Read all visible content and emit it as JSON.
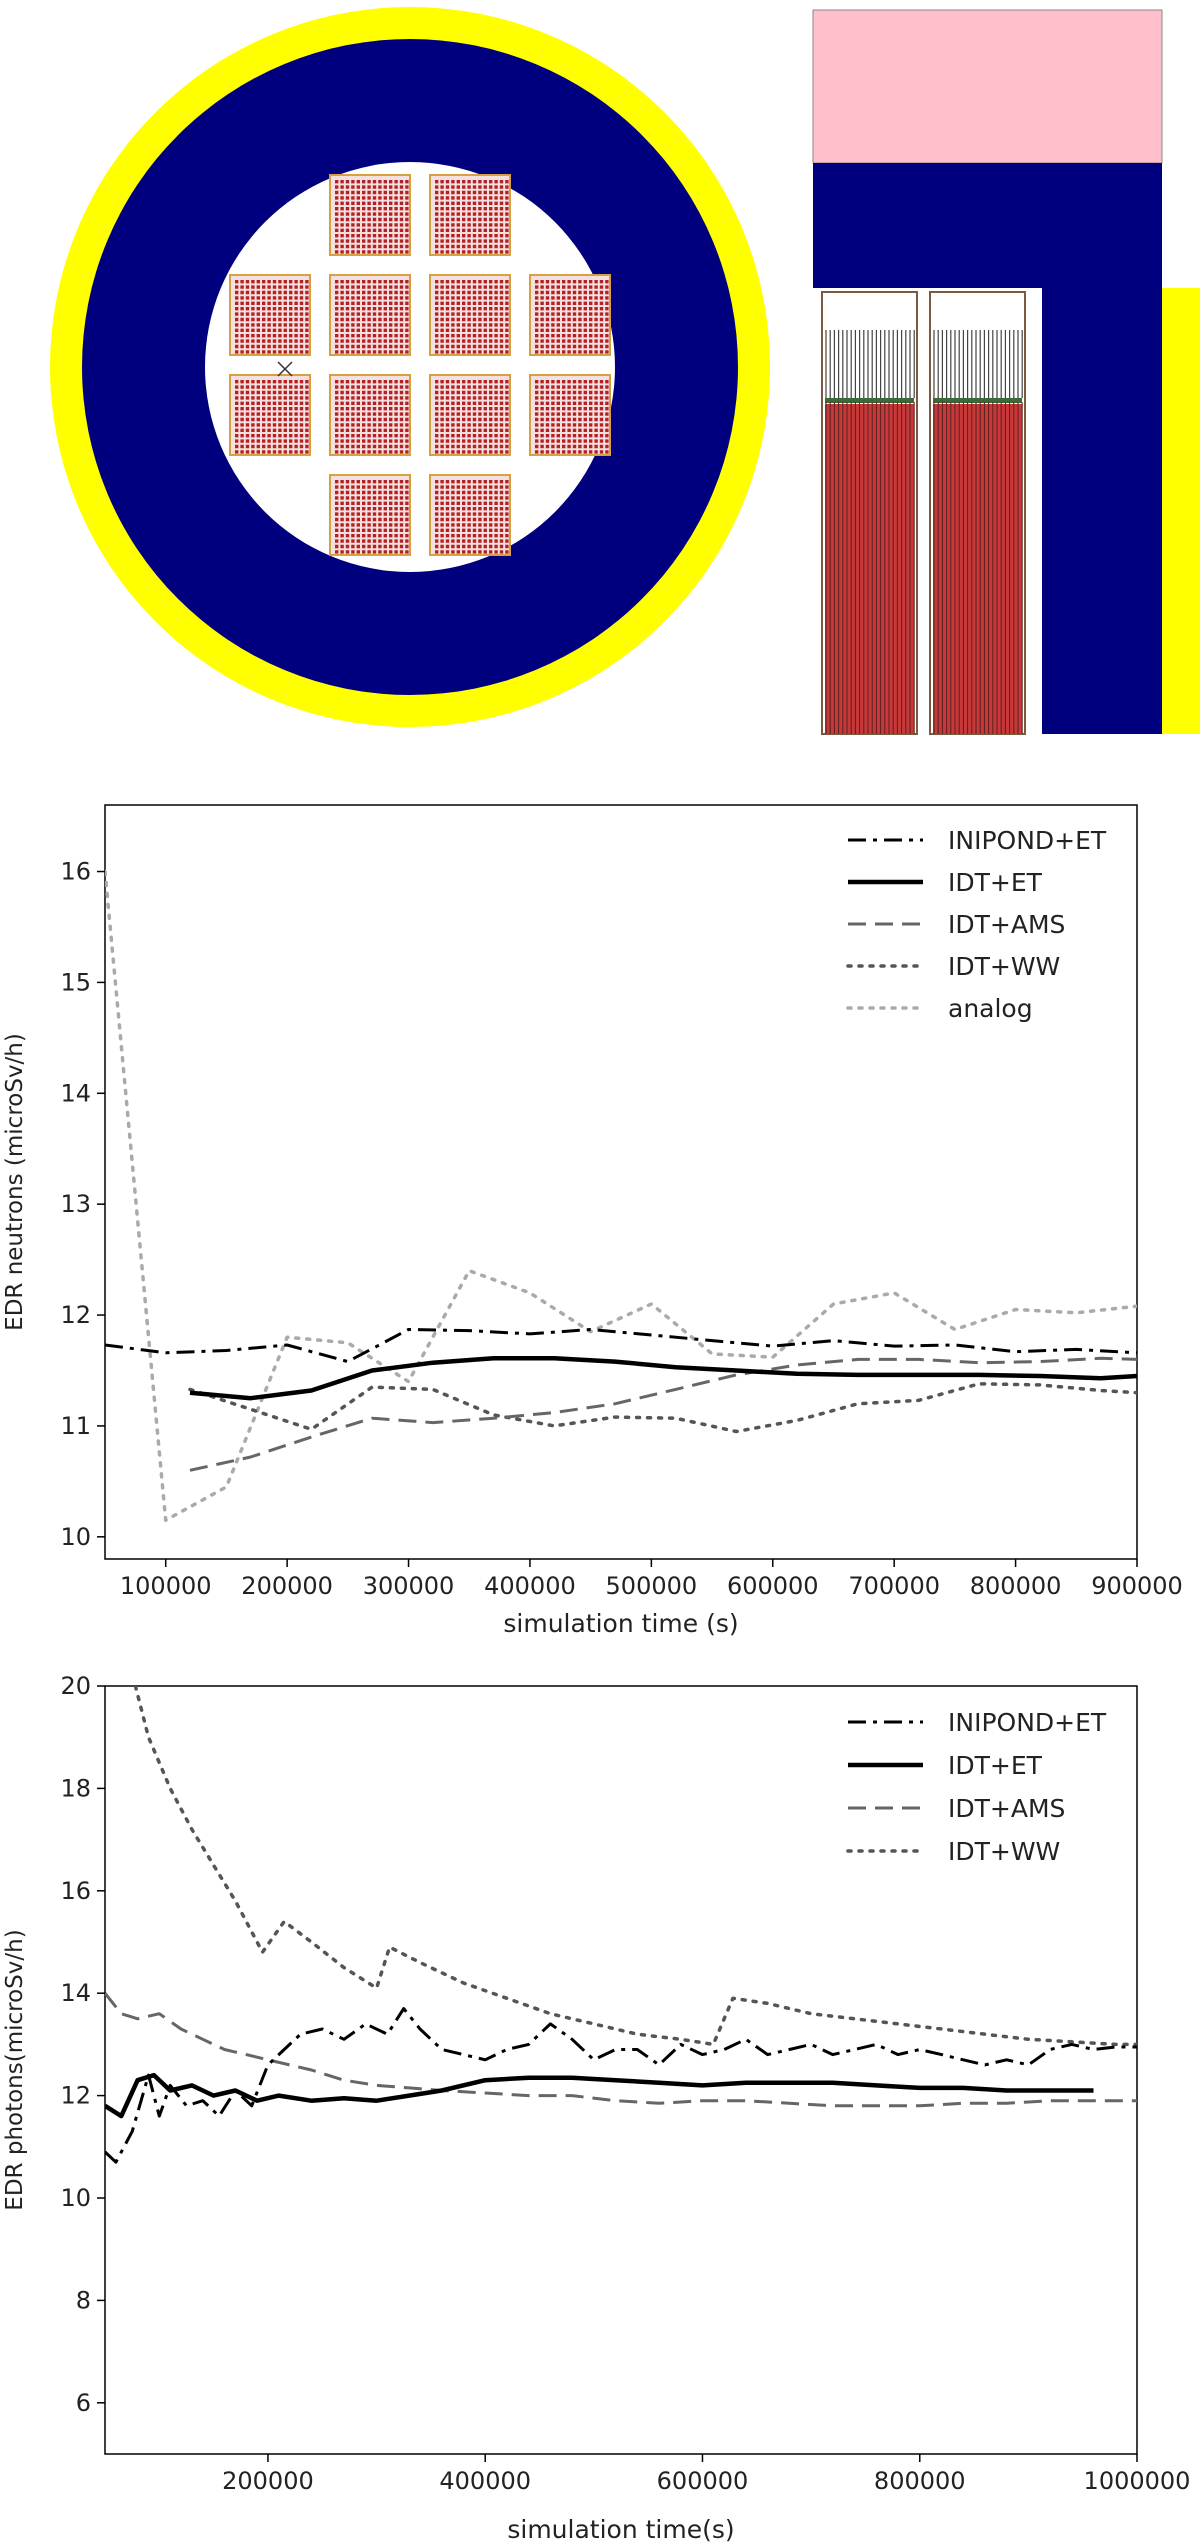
{
  "colors": {
    "yellow": "#ffff00",
    "navy": "#00007f",
    "pink": "#ffc0cb",
    "fuel_red": "#b22222",
    "assembly_outline": "#d8a040"
  },
  "geometry_views": {
    "cross_section": {
      "assemblies": 12
    },
    "side_view": {
      "casks": 2
    }
  },
  "chart_data": [
    {
      "type": "line",
      "xlabel": "simulation time (s)",
      "ylabel": "EDR neutrons (microSv/h)",
      "xlim": [
        50000,
        900000
      ],
      "ylim": [
        9.8,
        16.6
      ],
      "xticks": [
        100000,
        200000,
        300000,
        400000,
        500000,
        600000,
        700000,
        800000,
        900000
      ],
      "yticks": [
        10,
        11,
        12,
        13,
        14,
        15,
        16
      ],
      "legend_position": "top-right",
      "grid": false,
      "series": [
        {
          "name": "INIPOND+ET",
          "style": "dashdot",
          "color": "#000000",
          "width": 3,
          "x": [
            50000,
            100000,
            150000,
            200000,
            250000,
            300000,
            350000,
            400000,
            450000,
            500000,
            550000,
            600000,
            650000,
            700000,
            750000,
            800000,
            850000,
            900000
          ],
          "y": [
            11.73,
            11.66,
            11.68,
            11.73,
            11.58,
            11.87,
            11.86,
            11.83,
            11.87,
            11.82,
            11.77,
            11.72,
            11.77,
            11.72,
            11.73,
            11.67,
            11.69,
            11.66
          ]
        },
        {
          "name": "IDT+ET",
          "style": "solid",
          "color": "#000000",
          "width": 4.5,
          "x": [
            120000,
            170000,
            220000,
            270000,
            320000,
            370000,
            420000,
            470000,
            520000,
            570000,
            620000,
            670000,
            720000,
            770000,
            820000,
            870000,
            900000
          ],
          "y": [
            11.3,
            11.25,
            11.32,
            11.5,
            11.57,
            11.61,
            11.61,
            11.58,
            11.53,
            11.5,
            11.47,
            11.46,
            11.46,
            11.46,
            11.45,
            11.43,
            11.45
          ]
        },
        {
          "name": "IDT+AMS",
          "style": "dashed",
          "color": "#666666",
          "width": 3,
          "x": [
            120000,
            170000,
            220000,
            270000,
            320000,
            370000,
            420000,
            470000,
            520000,
            570000,
            620000,
            670000,
            720000,
            770000,
            820000,
            870000,
            900000
          ],
          "y": [
            10.6,
            10.72,
            10.9,
            11.07,
            11.03,
            11.07,
            11.12,
            11.2,
            11.33,
            11.46,
            11.55,
            11.6,
            11.6,
            11.57,
            11.58,
            11.61,
            11.6
          ]
        },
        {
          "name": "IDT+WW",
          "style": "dotted",
          "color": "#555555",
          "width": 3.5,
          "x": [
            120000,
            170000,
            220000,
            270000,
            320000,
            370000,
            420000,
            470000,
            520000,
            570000,
            620000,
            670000,
            720000,
            770000,
            820000,
            870000,
            900000
          ],
          "y": [
            11.33,
            11.15,
            10.97,
            11.35,
            11.33,
            11.1,
            11.0,
            11.08,
            11.07,
            10.95,
            11.05,
            11.2,
            11.23,
            11.38,
            11.37,
            11.32,
            11.3
          ]
        },
        {
          "name": "analog",
          "style": "dotted",
          "color": "#aaaaaa",
          "width": 3.5,
          "x": [
            50000,
            100000,
            150000,
            200000,
            250000,
            300000,
            350000,
            400000,
            450000,
            500000,
            550000,
            600000,
            650000,
            700000,
            750000,
            800000,
            850000,
            900000
          ],
          "y": [
            16.0,
            10.15,
            10.45,
            11.8,
            11.75,
            11.4,
            12.4,
            12.2,
            11.85,
            12.1,
            11.65,
            11.62,
            12.1,
            12.2,
            11.87,
            12.05,
            12.02,
            12.08
          ]
        }
      ]
    },
    {
      "type": "line",
      "xlabel": "simulation time(s)",
      "ylabel": "EDR photons(microSv/h)",
      "xlim": [
        50000,
        1000000
      ],
      "ylim": [
        5.0,
        20.0
      ],
      "xticks": [
        200000,
        400000,
        600000,
        800000,
        1000000
      ],
      "yticks": [
        6,
        8,
        10,
        12,
        14,
        16,
        18,
        20
      ],
      "legend_position": "top-right",
      "grid": false,
      "series": [
        {
          "name": "INIPOND+ET",
          "style": "dashdot",
          "color": "#000000",
          "width": 3,
          "x": [
            50000,
            60000,
            75000,
            90000,
            100000,
            110000,
            125000,
            140000,
            155000,
            170000,
            185000,
            200000,
            215000,
            230000,
            250000,
            270000,
            290000,
            310000,
            325000,
            340000,
            360000,
            380000,
            400000,
            420000,
            440000,
            460000,
            480000,
            500000,
            520000,
            540000,
            560000,
            580000,
            600000,
            620000,
            640000,
            660000,
            680000,
            700000,
            720000,
            740000,
            760000,
            780000,
            800000,
            820000,
            840000,
            860000,
            880000,
            900000,
            920000,
            940000,
            960000,
            980000,
            1000000
          ],
          "y": [
            10.9,
            10.7,
            11.3,
            12.4,
            11.6,
            12.2,
            11.8,
            11.9,
            11.6,
            12.1,
            11.8,
            12.6,
            12.9,
            13.2,
            13.3,
            13.1,
            13.4,
            13.2,
            13.7,
            13.3,
            12.9,
            12.8,
            12.7,
            12.9,
            13.0,
            13.4,
            13.1,
            12.7,
            12.9,
            12.9,
            12.6,
            13.0,
            12.8,
            12.9,
            13.1,
            12.8,
            12.9,
            13.0,
            12.8,
            12.9,
            13.0,
            12.8,
            12.9,
            12.8,
            12.7,
            12.6,
            12.7,
            12.6,
            12.9,
            13.0,
            12.9,
            12.95,
            12.95
          ]
        },
        {
          "name": "IDT+ET",
          "style": "solid",
          "color": "#000000",
          "width": 4.5,
          "x": [
            50000,
            65000,
            80000,
            95000,
            110000,
            130000,
            150000,
            170000,
            190000,
            210000,
            240000,
            270000,
            300000,
            330000,
            360000,
            400000,
            440000,
            480000,
            520000,
            560000,
            600000,
            640000,
            680000,
            720000,
            760000,
            800000,
            840000,
            880000,
            920000,
            960000
          ],
          "y": [
            11.8,
            11.6,
            12.3,
            12.4,
            12.1,
            12.2,
            12.0,
            12.1,
            11.9,
            12.0,
            11.9,
            11.95,
            11.9,
            12.0,
            12.1,
            12.3,
            12.35,
            12.35,
            12.3,
            12.25,
            12.2,
            12.25,
            12.25,
            12.25,
            12.2,
            12.15,
            12.15,
            12.1,
            12.1,
            12.1
          ]
        },
        {
          "name": "IDT+AMS",
          "style": "dashed",
          "color": "#666666",
          "width": 3,
          "x": [
            50000,
            65000,
            80000,
            100000,
            120000,
            140000,
            160000,
            180000,
            200000,
            220000,
            240000,
            270000,
            300000,
            330000,
            360000,
            400000,
            440000,
            480000,
            520000,
            560000,
            600000,
            640000,
            680000,
            720000,
            760000,
            800000,
            840000,
            880000,
            920000,
            960000,
            1000000
          ],
          "y": [
            14.0,
            13.6,
            13.5,
            13.6,
            13.3,
            13.1,
            12.9,
            12.8,
            12.7,
            12.6,
            12.5,
            12.3,
            12.2,
            12.15,
            12.1,
            12.05,
            12.0,
            12.0,
            11.9,
            11.85,
            11.9,
            11.9,
            11.85,
            11.8,
            11.8,
            11.8,
            11.85,
            11.85,
            11.9,
            11.9,
            11.9
          ]
        },
        {
          "name": "IDT+WW",
          "style": "dotted",
          "color": "#555555",
          "width": 3.5,
          "x": [
            78000,
            90000,
            110000,
            130000,
            150000,
            170000,
            185000,
            195000,
            215000,
            240000,
            270000,
            300000,
            312000,
            340000,
            380000,
            420000,
            460000,
            500000,
            540000,
            580000,
            610000,
            628000,
            660000,
            700000,
            740000,
            780000,
            820000,
            860000,
            900000,
            940000,
            980000,
            1000000
          ],
          "y": [
            20.0,
            19.0,
            18.0,
            17.2,
            16.5,
            15.8,
            15.2,
            14.8,
            15.4,
            15.0,
            14.5,
            14.1,
            14.9,
            14.6,
            14.2,
            13.9,
            13.6,
            13.4,
            13.2,
            13.1,
            13.0,
            13.9,
            13.8,
            13.6,
            13.5,
            13.4,
            13.3,
            13.2,
            13.1,
            13.05,
            13.0,
            13.0
          ]
        }
      ]
    }
  ]
}
